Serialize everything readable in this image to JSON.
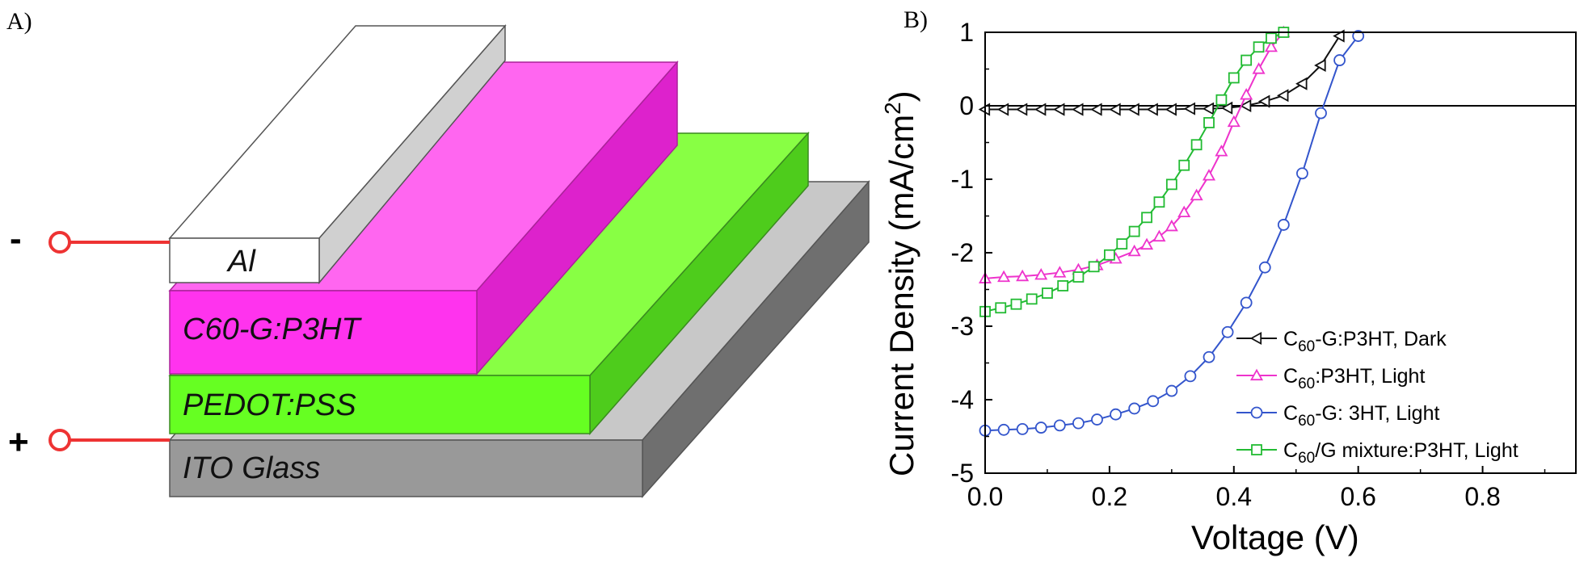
{
  "panel_a": {
    "label": "A)",
    "minus_sign": "-",
    "plus_sign": "+",
    "layers": [
      {
        "name": "Al",
        "color": "#ffffff"
      },
      {
        "name": "C60-G:P3HT",
        "color": "#ff33ee"
      },
      {
        "name": "PEDOT:PSS",
        "color": "#66ff22"
      },
      {
        "name": "ITO Glass",
        "color": "#999999"
      }
    ],
    "electrode_color": "#ee3333"
  },
  "panel_b": {
    "label": "B)"
  },
  "chart_data": {
    "type": "line",
    "title": "",
    "xlabel": "Voltage (V)",
    "ylabel": "Current Density (mA/cm2)",
    "ylabel_parts": {
      "main": "Current Density (mA/cm",
      "sup": "2",
      "end": ")"
    },
    "xlim": [
      0.0,
      0.95
    ],
    "ylim": [
      -5,
      1
    ],
    "xticks": [
      "0.0",
      "0.2",
      "0.4",
      "0.6",
      "0.8"
    ],
    "xtick_values": [
      0.0,
      0.2,
      0.4,
      0.6,
      0.8
    ],
    "yticks": [
      "1",
      "0",
      "-1",
      "-2",
      "-3",
      "-4",
      "-5"
    ],
    "ytick_values": [
      1,
      0,
      -1,
      -2,
      -3,
      -4,
      -5
    ],
    "zero_line": true,
    "legend_position": "bottom-right",
    "series": [
      {
        "name": "C60-G:P3HT, Dark",
        "legend_parts": [
          "C",
          "60",
          "-G:P3HT, Dark"
        ],
        "color": "#111111",
        "marker": "triangle-left",
        "x": [
          0.0,
          0.03,
          0.06,
          0.09,
          0.12,
          0.15,
          0.18,
          0.21,
          0.24,
          0.27,
          0.3,
          0.33,
          0.36,
          0.39,
          0.42,
          0.45,
          0.48,
          0.51,
          0.54,
          0.57
        ],
        "y": [
          -0.05,
          -0.05,
          -0.05,
          -0.05,
          -0.05,
          -0.05,
          -0.05,
          -0.05,
          -0.05,
          -0.05,
          -0.05,
          -0.04,
          -0.04,
          -0.03,
          0.0,
          0.06,
          0.14,
          0.3,
          0.55,
          0.95
        ]
      },
      {
        "name": "C60:P3HT, Light",
        "legend_parts": [
          "C",
          "60",
          ":P3HT, Light"
        ],
        "color": "#ee33cc",
        "marker": "triangle-up",
        "x": [
          0.0,
          0.03,
          0.06,
          0.09,
          0.12,
          0.15,
          0.18,
          0.21,
          0.24,
          0.26,
          0.28,
          0.3,
          0.32,
          0.34,
          0.36,
          0.38,
          0.4,
          0.42,
          0.44,
          0.46,
          0.48
        ],
        "y": [
          -2.35,
          -2.33,
          -2.32,
          -2.3,
          -2.27,
          -2.23,
          -2.17,
          -2.08,
          -1.98,
          -1.89,
          -1.78,
          -1.64,
          -1.45,
          -1.22,
          -0.95,
          -0.62,
          -0.22,
          0.15,
          0.5,
          0.8,
          1.0
        ]
      },
      {
        "name": "C60-G: 3HT, Light",
        "legend_parts": [
          "C",
          "60",
          "-G: 3HT, Light"
        ],
        "color": "#3355cc",
        "marker": "circle",
        "x": [
          0.0,
          0.03,
          0.06,
          0.09,
          0.12,
          0.15,
          0.18,
          0.21,
          0.24,
          0.27,
          0.3,
          0.33,
          0.36,
          0.39,
          0.42,
          0.45,
          0.48,
          0.51,
          0.54,
          0.57,
          0.6
        ],
        "y": [
          -4.42,
          -4.41,
          -4.4,
          -4.38,
          -4.35,
          -4.32,
          -4.27,
          -4.2,
          -4.12,
          -4.02,
          -3.88,
          -3.68,
          -3.42,
          -3.08,
          -2.68,
          -2.2,
          -1.62,
          -0.92,
          -0.1,
          0.62,
          0.95
        ]
      },
      {
        "name": "C60/G mixture:P3HT, Light",
        "legend_parts": [
          "C",
          "60",
          "/G mixture:P3HT, Light"
        ],
        "color": "#22bb33",
        "marker": "square",
        "x": [
          0.0,
          0.025,
          0.05,
          0.075,
          0.1,
          0.125,
          0.15,
          0.175,
          0.2,
          0.22,
          0.24,
          0.26,
          0.28,
          0.3,
          0.32,
          0.34,
          0.36,
          0.38,
          0.4,
          0.42,
          0.44,
          0.46,
          0.48
        ],
        "y": [
          -2.8,
          -2.75,
          -2.7,
          -2.63,
          -2.55,
          -2.45,
          -2.33,
          -2.19,
          -2.03,
          -1.88,
          -1.71,
          -1.52,
          -1.31,
          -1.07,
          -0.81,
          -0.53,
          -0.23,
          0.08,
          0.38,
          0.62,
          0.8,
          0.92,
          1.0
        ]
      }
    ]
  }
}
